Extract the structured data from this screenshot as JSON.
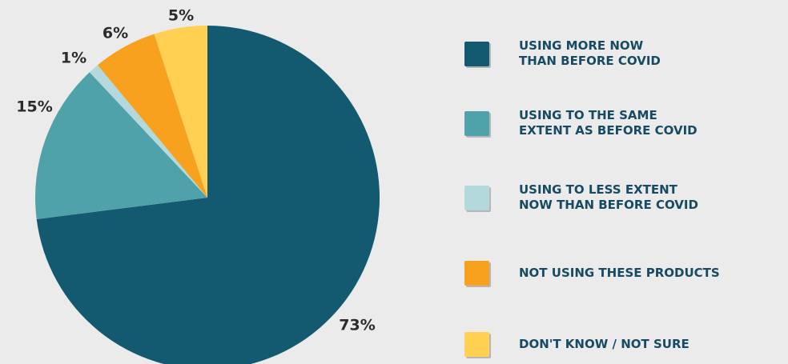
{
  "chart_data": {
    "type": "pie",
    "title": "",
    "slices": [
      {
        "label": "USING MORE NOW\nTHAN BEFORE COVID",
        "value": 73,
        "display": "73%",
        "color": "#135a71"
      },
      {
        "label": "USING TO THE SAME\nEXTENT AS BEFORE COVID",
        "value": 15,
        "display": "15%",
        "color": "#50a2aa"
      },
      {
        "label": "USING TO LESS EXTENT\nNOW THAN BEFORE COVID",
        "value": 1,
        "display": "1%",
        "color": "#b4d9dd"
      },
      {
        "label": "NOT USING THESE PRODUCTS",
        "value": 6,
        "display": "6%",
        "color": "#f7a11e"
      },
      {
        "label": "DON'T KNOW / NOT SURE",
        "value": 5,
        "display": "5%",
        "color": "#ffd052"
      }
    ],
    "legend_position": "right"
  }
}
